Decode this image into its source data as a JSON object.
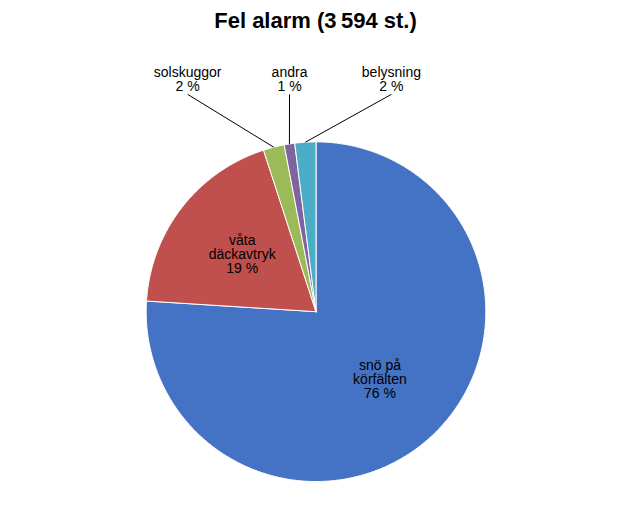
{
  "chart_data": {
    "type": "pie",
    "title": "Fel alarm (3 594 st.)",
    "categories": [
      "snö på\nkörfälten",
      "våta\ndäckavtryk",
      "solskuggor",
      "andra",
      "belysning"
    ],
    "values": [
      76,
      19,
      2,
      1,
      2
    ],
    "value_labels": [
      "76 %",
      "19 %",
      "2 %",
      "1 %",
      "2 %"
    ],
    "colors": [
      "#4472C4",
      "#C0504D",
      "#9BBB59",
      "#8064A2",
      "#4BACC6"
    ],
    "data_labels": true
  }
}
